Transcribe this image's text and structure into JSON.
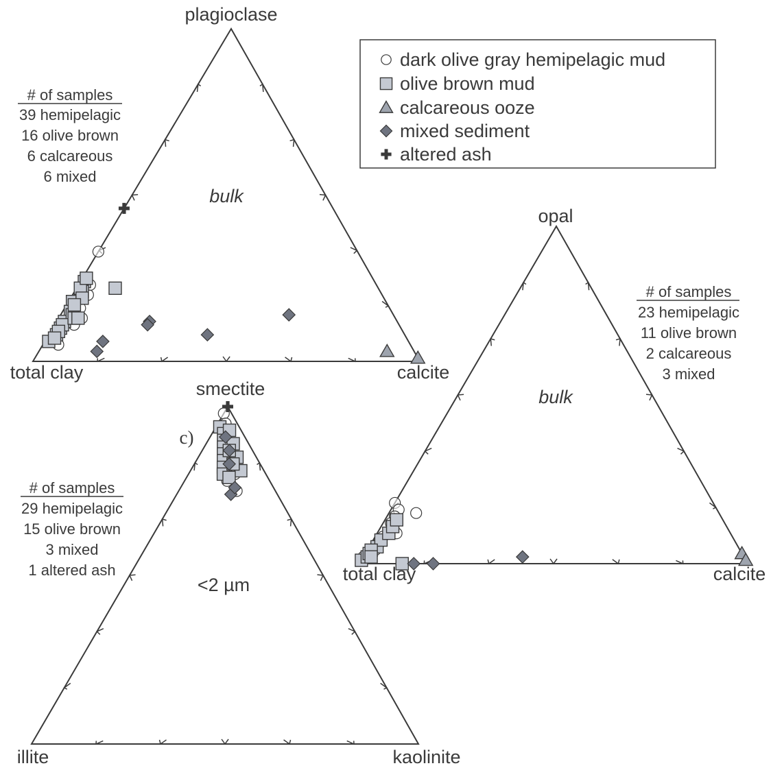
{
  "colors": {
    "ink": "#3a3a3a",
    "square_fill": "#c4c9d2",
    "triangle_fill": "#9ea4ae",
    "diamond_fill": "#6f7480",
    "background": "#ffffff"
  },
  "legend": {
    "items": [
      {
        "marker": "circle",
        "label": "dark olive gray hemipelagic mud"
      },
      {
        "marker": "square",
        "label": "olive brown mud"
      },
      {
        "marker": "triangle",
        "label": "calcareous ooze"
      },
      {
        "marker": "diamond",
        "label": "mixed sediment"
      },
      {
        "marker": "cross",
        "label": "altered ash"
      }
    ]
  },
  "chart_data": [
    {
      "type": "ternary-scatter",
      "label": "bulk",
      "vertices": {
        "top": "plagioclase",
        "left": "total clay",
        "right": "calcite"
      },
      "ticks": 5,
      "samples": {
        "heading": "# of samples",
        "lines": [
          "39 hemipelagic",
          "16 olive brown",
          "6 calcareous",
          "6 mixed"
        ]
      },
      "points": {
        "circle": [
          [
            33,
            67,
            0
          ],
          [
            16,
            82,
            2
          ],
          [
            5,
            91,
            4
          ],
          [
            11,
            84,
            5
          ],
          [
            16,
            80,
            4
          ],
          [
            13,
            81,
            6
          ],
          [
            20,
            76,
            4
          ],
          [
            23,
            74,
            3
          ]
        ],
        "square": [
          [
            24,
            75,
            1
          ],
          [
            18,
            81,
            1
          ],
          [
            15,
            83,
            2
          ],
          [
            12,
            86,
            2
          ],
          [
            10,
            88,
            2
          ],
          [
            8,
            90,
            2
          ],
          [
            6,
            93,
            1
          ],
          [
            21,
            77,
            2
          ],
          [
            22,
            77,
            1
          ],
          [
            14,
            83,
            3
          ],
          [
            19,
            78,
            3
          ],
          [
            11,
            87,
            2
          ],
          [
            9,
            89,
            2
          ],
          [
            7,
            91,
            2
          ],
          [
            17,
            81,
            2
          ],
          [
            25,
            74,
            1
          ],
          [
            13,
            83,
            4
          ],
          [
            22,
            68,
            10
          ],
          [
            13,
            82,
            5
          ]
        ],
        "triangle": [
          [
            3,
            7,
            90
          ],
          [
            1,
            0,
            99
          ]
        ],
        "diamond": [
          [
            8,
            51,
            41
          ],
          [
            12,
            64,
            24
          ],
          [
            11,
            65,
            24
          ],
          [
            14,
            27,
            59
          ],
          [
            3,
            82,
            15
          ],
          [
            6,
            79,
            15
          ]
        ],
        "cross": [
          [
            46,
            54,
            0
          ]
        ]
      }
    },
    {
      "type": "ternary-scatter",
      "label": "bulk",
      "vertices": {
        "top": "opal",
        "left": "total clay",
        "right": "calcite"
      },
      "ticks": 5,
      "samples": {
        "heading": "# of samples",
        "lines": [
          "23 hemipelagic",
          "11 olive brown",
          "2 calcareous",
          "3 mixed"
        ]
      },
      "points": {
        "circle": [
          [
            18,
            82,
            0
          ],
          [
            16,
            82,
            2
          ],
          [
            14,
            84,
            2
          ],
          [
            12,
            86,
            2
          ],
          [
            10,
            87,
            3
          ],
          [
            8,
            90,
            2
          ],
          [
            6,
            92,
            2
          ],
          [
            4,
            94,
            2
          ],
          [
            2,
            98,
            0
          ],
          [
            9,
            86,
            5
          ],
          [
            15,
            78,
            7
          ]
        ],
        "square": [
          [
            1,
            99,
            0
          ],
          [
            2,
            97,
            1
          ],
          [
            3,
            96,
            1
          ],
          [
            5,
            93,
            2
          ],
          [
            7,
            91,
            2
          ],
          [
            9,
            88,
            3
          ],
          [
            11,
            86,
            3
          ],
          [
            13,
            84,
            3
          ],
          [
            4,
            95,
            1
          ],
          [
            2,
            96,
            2
          ],
          [
            0,
            89,
            11
          ]
        ],
        "triangle": [
          [
            3,
            0,
            97
          ],
          [
            1,
            0,
            99
          ]
        ],
        "diamond": [
          [
            0,
            86,
            14
          ],
          [
            0,
            81,
            19
          ],
          [
            2,
            57,
            41
          ]
        ],
        "cross": []
      }
    },
    {
      "type": "ternary-scatter",
      "label": "<2 µm",
      "panel_letter": "c)",
      "vertices": {
        "top": "smectite",
        "left": "illite",
        "right": "kaolinite"
      },
      "ticks": 5,
      "samples": {
        "heading": "# of samples",
        "lines": [
          "29 hemipelagic",
          "15 olive brown",
          "3 mixed",
          "1 altered ash"
        ]
      },
      "points": {
        "circle": [
          [
            98,
            2,
            0
          ],
          [
            95,
            3,
            2
          ],
          [
            93,
            4,
            3
          ],
          [
            91,
            5,
            4
          ],
          [
            89,
            5,
            6
          ],
          [
            87,
            6,
            7
          ],
          [
            85,
            7,
            8
          ],
          [
            83,
            8,
            9
          ],
          [
            81,
            10,
            9
          ],
          [
            80,
            8,
            12
          ],
          [
            78,
            11,
            11
          ],
          [
            75,
            10,
            15
          ],
          [
            90,
            6,
            4
          ],
          [
            86,
            8,
            6
          ],
          [
            82,
            9,
            9
          ]
        ],
        "square": [
          [
            94,
            5,
            1
          ],
          [
            92,
            5,
            3
          ],
          [
            90,
            6,
            4
          ],
          [
            88,
            7,
            5
          ],
          [
            86,
            8,
            6
          ],
          [
            84,
            9,
            7
          ],
          [
            82,
            10,
            8
          ],
          [
            80,
            11,
            9
          ],
          [
            93,
            3,
            4
          ],
          [
            89,
            4,
            7
          ],
          [
            85,
            5,
            10
          ],
          [
            81,
            6,
            13
          ],
          [
            87,
            6,
            7
          ],
          [
            83,
            7,
            10
          ],
          [
            79,
            10,
            11
          ]
        ],
        "triangle": [],
        "diamond": [
          [
            91,
            5,
            4
          ],
          [
            87,
            6,
            7
          ],
          [
            83,
            8,
            9
          ],
          [
            74,
            12,
            14
          ],
          [
            76,
            10,
            14
          ]
        ],
        "cross": [
          [
            100,
            0,
            0
          ]
        ]
      }
    }
  ]
}
